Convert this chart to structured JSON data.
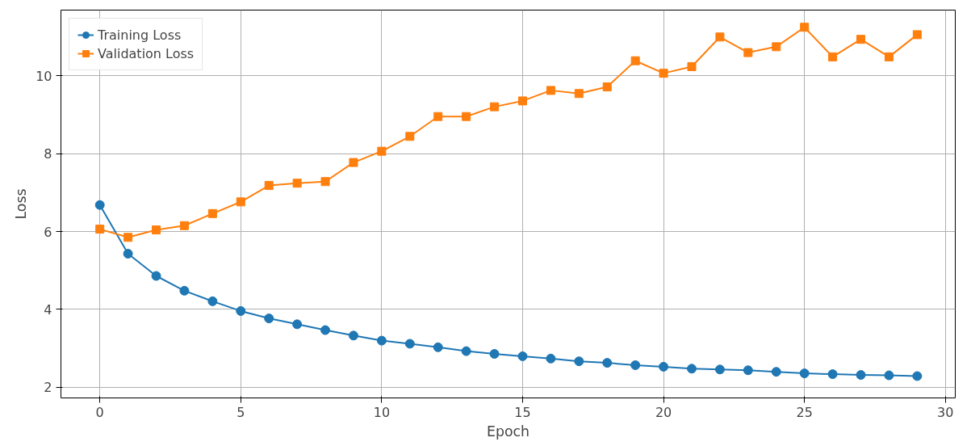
{
  "chart_data": {
    "type": "line",
    "xlabel": "Epoch",
    "ylabel": "Loss",
    "x": [
      0,
      1,
      2,
      3,
      4,
      5,
      6,
      7,
      8,
      9,
      10,
      11,
      12,
      13,
      14,
      15,
      16,
      17,
      18,
      19,
      20,
      21,
      22,
      23,
      24,
      25,
      26,
      27,
      28,
      29
    ],
    "series": [
      {
        "name": "Training Loss",
        "color": "#1f77b4",
        "marker": "circle",
        "values": [
          6.68,
          5.43,
          4.86,
          4.48,
          4.21,
          3.96,
          3.77,
          3.62,
          3.47,
          3.33,
          3.2,
          3.12,
          3.03,
          2.93,
          2.86,
          2.8,
          2.74,
          2.67,
          2.63,
          2.57,
          2.53,
          2.48,
          2.46,
          2.44,
          2.4,
          2.36,
          2.34,
          2.32,
          2.31,
          2.29
        ]
      },
      {
        "name": "Validation Loss",
        "color": "#ff7f0e",
        "marker": "square",
        "values": [
          6.06,
          5.85,
          6.04,
          6.15,
          6.46,
          6.76,
          7.18,
          7.24,
          7.28,
          7.77,
          8.06,
          8.44,
          8.95,
          8.95,
          9.2,
          9.35,
          9.62,
          9.54,
          9.71,
          10.38,
          10.06,
          10.23,
          10.99,
          10.59,
          10.74,
          11.24,
          10.48,
          10.93,
          10.48,
          11.05
        ]
      }
    ],
    "xlim": [
      -1.38,
      30.35
    ],
    "ylim": [
      1.73,
      11.68
    ],
    "xticks": [
      0,
      5,
      10,
      15,
      20,
      25,
      30
    ],
    "yticks": [
      2,
      4,
      6,
      8,
      10
    ],
    "grid": true,
    "legend": "top left",
    "line_style": "solid"
  }
}
